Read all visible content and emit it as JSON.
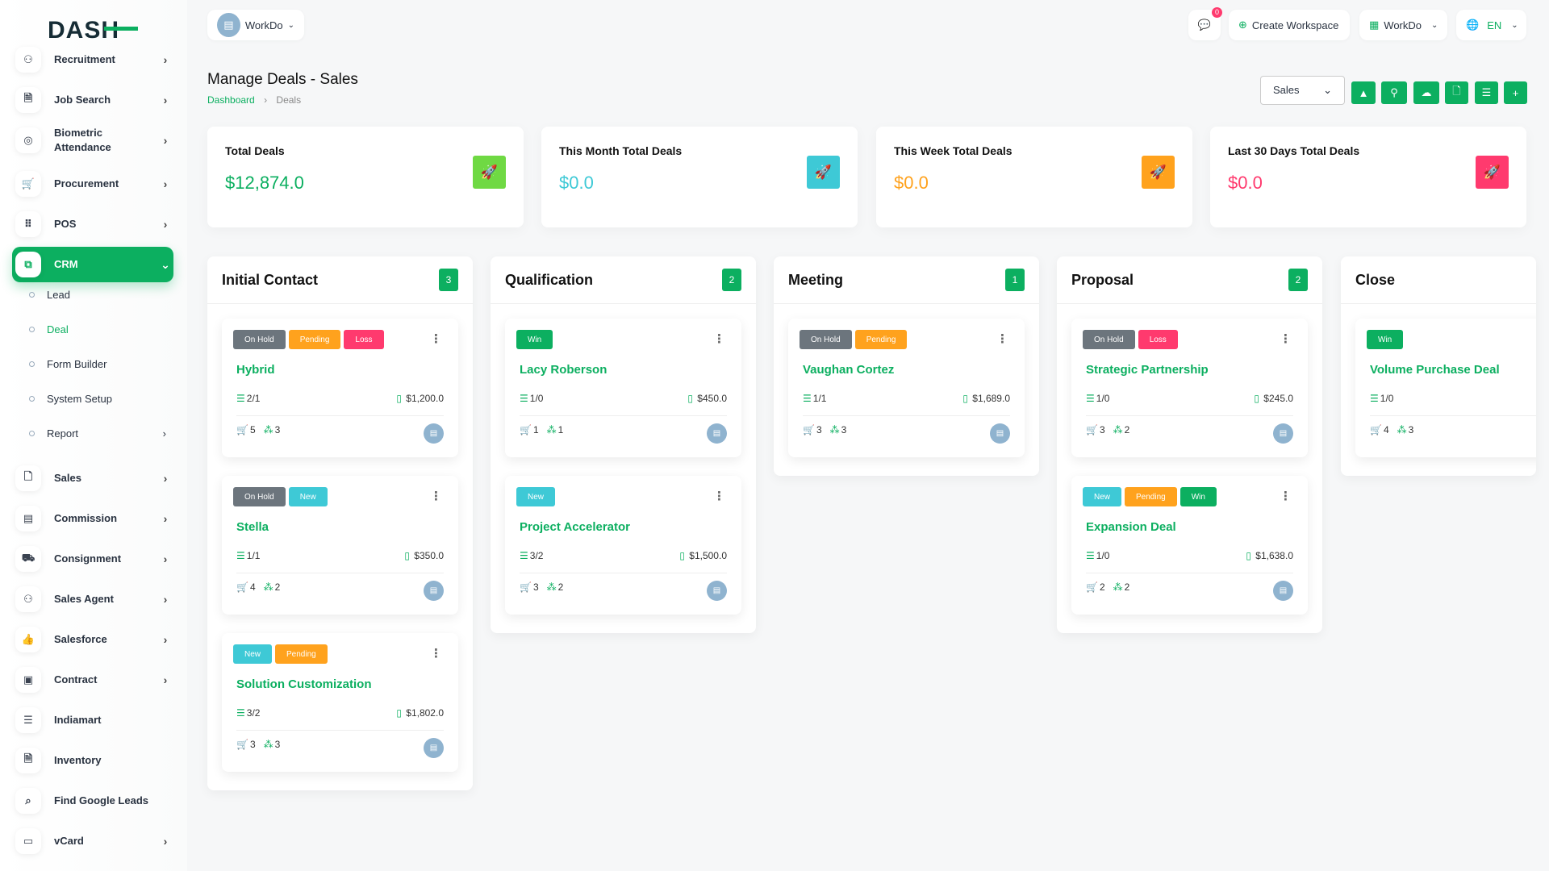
{
  "brand": {
    "logo_text": "DASH"
  },
  "header": {
    "workspace": "WorkDo",
    "notifications": "0",
    "create_workspace": "Create Workspace",
    "workspace_menu": "WorkDo",
    "language": "EN"
  },
  "sidebar": {
    "items": [
      {
        "label": "Recruitment",
        "icon": "user-plus-icon",
        "chev": true
      },
      {
        "label": "Job Search",
        "icon": "file-search-icon",
        "chev": true
      },
      {
        "label": "Biometric Attendance",
        "icon": "fingerprint-icon",
        "chev": true
      },
      {
        "label": "Procurement",
        "icon": "cart-icon",
        "chev": true
      },
      {
        "label": "POS",
        "icon": "grid-icon",
        "chev": true
      },
      {
        "label": "CRM",
        "icon": "crm-icon",
        "chev": true,
        "active": true,
        "sub": [
          {
            "label": "Lead"
          },
          {
            "label": "Deal",
            "active": true
          },
          {
            "label": "Form Builder"
          },
          {
            "label": "System Setup"
          },
          {
            "label": "Report",
            "chev": true
          }
        ]
      },
      {
        "label": "Sales",
        "icon": "file-icon",
        "chev": true
      },
      {
        "label": "Commission",
        "icon": "receipt-icon",
        "chev": true
      },
      {
        "label": "Consignment",
        "icon": "truck-icon",
        "chev": true
      },
      {
        "label": "Sales Agent",
        "icon": "user-check-icon",
        "chev": true
      },
      {
        "label": "Salesforce",
        "icon": "thumb-up-icon",
        "chev": true
      },
      {
        "label": "Contract",
        "icon": "contract-icon",
        "chev": true
      },
      {
        "label": "Indiamart",
        "icon": "indent-icon",
        "chev": false
      },
      {
        "label": "Inventory",
        "icon": "file-text-icon",
        "chev": false
      },
      {
        "label": "Find Google Leads",
        "icon": "search-icon",
        "chev": false
      },
      {
        "label": "vCard",
        "icon": "id-card-icon",
        "chev": true
      }
    ]
  },
  "page": {
    "title": "Manage Deals - Sales",
    "breadcrumb": [
      "Dashboard",
      "Deals"
    ],
    "pipeline_select": "Sales"
  },
  "toolbar": [
    "google-drive-icon",
    "hubspot-icon",
    "onedrive-icon",
    "file-import-icon",
    "list-icon",
    "plus-icon"
  ],
  "stats": [
    {
      "title": "Total Deals",
      "value": "$12,874.0",
      "color": "#0caf60",
      "icon_bg": "#6fd943"
    },
    {
      "title": "This Month Total Deals",
      "value": "$0.0",
      "color": "#3ec9d6",
      "icon_bg": "#3ec9d6"
    },
    {
      "title": "This Week Total Deals",
      "value": "$0.0",
      "color": "#ffa21d",
      "icon_bg": "#ffa21d"
    },
    {
      "title": "Last 30 Days Total Deals",
      "value": "$0.0",
      "color": "#ff3a6e",
      "icon_bg": "#ff3a6e"
    }
  ],
  "tag_colors": {
    "On Hold": "#6c757d",
    "Pending": "#ffa21d",
    "Loss": "#ff3a6e",
    "Win": "#0caf60",
    "New": "#3ec9d6"
  },
  "columns": [
    {
      "title": "Initial Contact",
      "count": "3",
      "cards": [
        {
          "tags": [
            "On Hold",
            "Pending",
            "Loss"
          ],
          "name": "Hybrid",
          "tasks": "2/1",
          "price": "$1,200.0",
          "products": "5",
          "sources": "3"
        },
        {
          "tags": [
            "On Hold",
            "New"
          ],
          "name": "Stella",
          "tasks": "1/1",
          "price": "$350.0",
          "products": "4",
          "sources": "2"
        },
        {
          "tags": [
            "New",
            "Pending"
          ],
          "name": "Solution Customization",
          "tasks": "3/2",
          "price": "$1,802.0",
          "products": "3",
          "sources": "3"
        }
      ]
    },
    {
      "title": "Qualification",
      "count": "2",
      "cards": [
        {
          "tags": [
            "Win"
          ],
          "name": "Lacy Roberson",
          "tasks": "1/0",
          "price": "$450.0",
          "products": "1",
          "sources": "1"
        },
        {
          "tags": [
            "New"
          ],
          "name": "Project Accelerator",
          "tasks": "3/2",
          "price": "$1,500.0",
          "products": "3",
          "sources": "2"
        }
      ]
    },
    {
      "title": "Meeting",
      "count": "1",
      "cards": [
        {
          "tags": [
            "On Hold",
            "Pending"
          ],
          "name": "Vaughan Cortez",
          "tasks": "1/1",
          "price": "$1,689.0",
          "products": "3",
          "sources": "3"
        }
      ]
    },
    {
      "title": "Proposal",
      "count": "2",
      "cards": [
        {
          "tags": [
            "On Hold",
            "Loss"
          ],
          "name": "Strategic Partnership",
          "tasks": "1/0",
          "price": "$245.0",
          "products": "3",
          "sources": "2"
        },
        {
          "tags": [
            "New",
            "Pending",
            "Win"
          ],
          "name": "Expansion Deal",
          "tasks": "1/0",
          "price": "$1,638.0",
          "products": "2",
          "sources": "2"
        }
      ]
    },
    {
      "title": "Close",
      "count": "",
      "cards": [
        {
          "tags": [
            "Win"
          ],
          "name": "Volume Purchase Deal",
          "tasks": "1/0",
          "price": "",
          "products": "4",
          "sources": "3"
        }
      ]
    }
  ]
}
